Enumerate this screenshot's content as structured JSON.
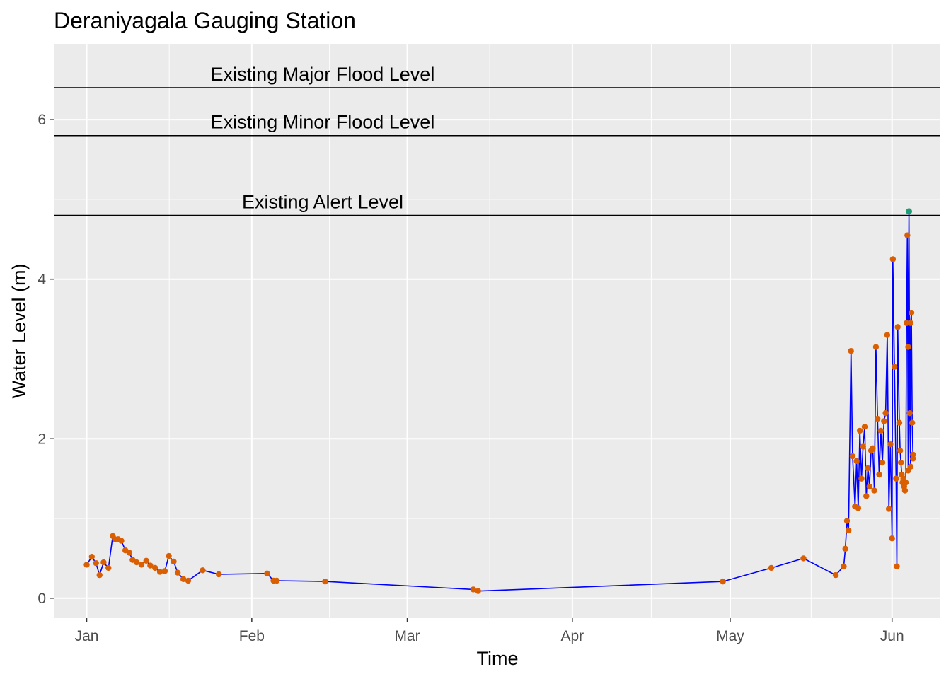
{
  "chart_data": {
    "type": "line",
    "title": "Deraniyagala Gauging Station",
    "xlabel": "Time",
    "ylabel": "Water Level (m)",
    "x_tick_labels": [
      "Jan",
      "Feb",
      "Mar",
      "Apr",
      "May",
      "Jun"
    ],
    "y_ticks": [
      0,
      2,
      4,
      6
    ],
    "ylim": [
      -0.25,
      6.95
    ],
    "xlim_days": [
      -2,
      53
    ],
    "grid": true,
    "reference_lines": [
      {
        "label": "Existing Major Flood Level",
        "y": 6.4
      },
      {
        "label": "Existing Minor Flood Level",
        "y": 5.8
      },
      {
        "label": "Existing Alert Level",
        "y": 4.8
      }
    ],
    "series": [
      {
        "line_color": "#0000ff",
        "point_color": "#d95f02",
        "x_day": [
          0.0,
          0.32,
          0.58,
          0.8,
          1.05,
          1.35,
          1.62,
          1.75,
          1.95,
          2.15,
          2.4,
          2.65,
          2.85,
          3.1,
          3.4,
          3.7,
          3.95,
          4.25,
          4.55,
          4.85,
          5.1,
          5.4,
          5.65,
          6.0,
          6.3,
          7.2,
          8.2,
          11.2,
          11.6,
          11.8,
          14.8,
          24.0,
          24.3,
          39.5,
          42.5,
          44.5,
          46.5,
          50.0,
          50.3,
          51.0,
          51.15,
          51.3
        ],
        "y": [
          0.42,
          0.52,
          0.44,
          0.29,
          0.45,
          0.38,
          0.78,
          0.74,
          0.74,
          0.72,
          0.6,
          0.57,
          0.48,
          0.45,
          0.42,
          0.47,
          0.41,
          0.38,
          0.33,
          0.34,
          0.53,
          0.46,
          0.32,
          0.24,
          0.22,
          0.35,
          0.3,
          0.31,
          0.22,
          0.22,
          0.21,
          0.11,
          0.09,
          0.21,
          0.38,
          0.5,
          0.29,
          0.75,
          0.4,
          1.6,
          1.65,
          1.75
        ]
      },
      {
        "name_note": "dense fluctuating segment late May to early June",
        "x_day": [
          47.0,
          47.1,
          47.2,
          47.3,
          47.45,
          47.55,
          47.7,
          47.8,
          47.9,
          48.0,
          48.1,
          48.2,
          48.3,
          48.4,
          48.5,
          48.6,
          48.7,
          48.8,
          48.9,
          49.0,
          49.1,
          49.2,
          49.3,
          49.4,
          49.5,
          49.6,
          49.7,
          49.8,
          49.9,
          50.05,
          50.15,
          50.25,
          50.35,
          50.45,
          50.5,
          50.55,
          50.6,
          50.65,
          50.7,
          50.75,
          50.8,
          50.85,
          50.9,
          50.95,
          51.0,
          51.05,
          51.1,
          51.15,
          51.2,
          51.25,
          51.3
        ],
        "y": [
          0.4,
          0.62,
          0.97,
          0.85,
          3.1,
          1.78,
          1.15,
          1.72,
          1.13,
          2.1,
          1.5,
          1.9,
          2.15,
          1.28,
          1.63,
          1.4,
          1.85,
          1.88,
          1.35,
          3.15,
          2.25,
          1.55,
          2.1,
          1.7,
          2.22,
          2.32,
          3.3,
          1.12,
          1.93,
          4.25,
          2.9,
          1.5,
          3.4,
          2.2,
          1.85,
          1.7,
          1.55,
          1.45,
          1.5,
          1.4,
          1.35,
          1.45,
          3.45,
          4.55,
          3.15,
          4.85,
          2.32,
          3.45,
          3.58,
          2.2,
          1.8
        ]
      }
    ],
    "peak_point": {
      "x_day": 51.05,
      "y": 4.85,
      "color": "#1b9e77"
    }
  }
}
